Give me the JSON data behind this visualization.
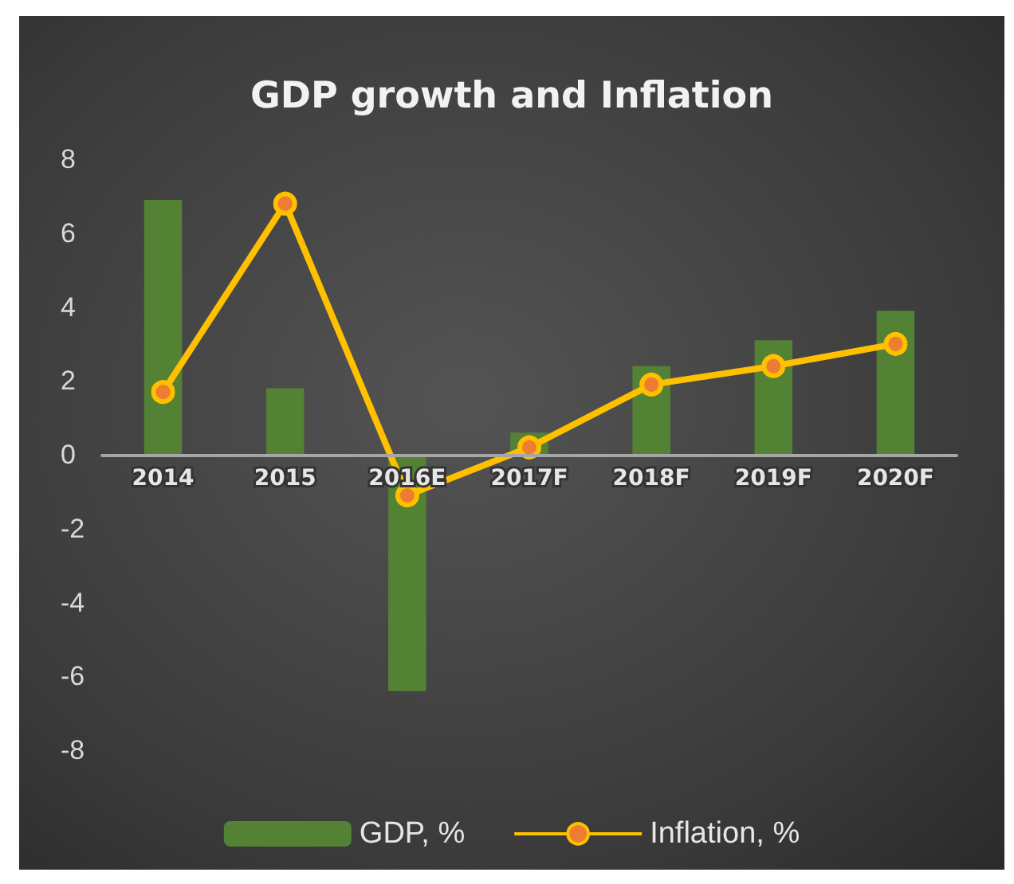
{
  "chart_data": {
    "type": "bar",
    "title": "GDP growth and Inflation",
    "categories": [
      "2014",
      "2015",
      "2016E",
      "2017F",
      "2018F",
      "2019F",
      "2020F"
    ],
    "series": [
      {
        "name": "GDP, %",
        "color": "#548235",
        "values": [
          6.9,
          1.8,
          -6.4,
          0.6,
          2.4,
          3.1,
          3.9
        ]
      },
      {
        "name": "Inflation, %",
        "type": "line",
        "color": "#ffc000",
        "marker": "circle",
        "values": [
          1.7,
          6.8,
          -1.1,
          0.2,
          1.9,
          2.4,
          3.0
        ]
      }
    ],
    "ylim": [
      -8,
      8
    ],
    "yticks": [
      -8,
      -6,
      -4,
      -2,
      0,
      2,
      4,
      6,
      8
    ],
    "legend": "bottom"
  }
}
